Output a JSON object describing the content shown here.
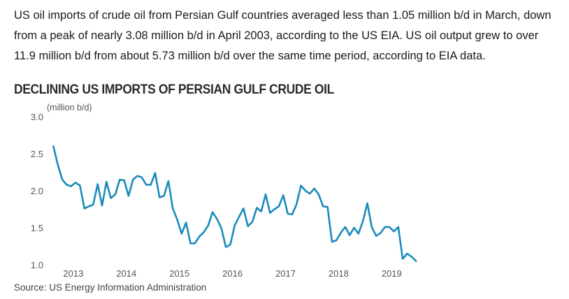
{
  "intro_text": "US oil imports of crude oil from Persian Gulf countries averaged less than 1.05 million b/d in March, down from a peak of nearly 3.08 million b/d in April 2003, according to the US EIA. US oil output grew to over 11.9 million b/d from about 5.73 million b/d over the same time period, according to EIA data.",
  "source": "Source: US Energy Information Administration",
  "colors": {
    "line": "#1a8bbb",
    "text": "#1a1a1a",
    "tick": "#555555"
  },
  "chart_data": {
    "type": "line",
    "title": "DECLINING US IMPORTS OF PERSIAN GULF CRUDE OIL",
    "ylabel": "(million b/d)",
    "xlabel": "",
    "ylim": [
      1.0,
      3.0
    ],
    "yticks": [
      "1.0",
      "1.5",
      "2.0",
      "2.5",
      "3.0"
    ],
    "xticks": [
      "2013",
      "2014",
      "2015",
      "2016",
      "2017",
      "2018",
      "2019"
    ],
    "xlim": [
      2012.58,
      2019.22
    ],
    "grid": false,
    "series": [
      {
        "start": 2012.625,
        "step": 0.08333,
        "values": [
          2.6,
          2.35,
          2.15,
          2.08,
          2.06,
          2.11,
          2.07,
          1.76,
          1.79,
          1.81,
          2.09,
          1.8,
          2.12,
          1.9,
          1.95,
          2.15,
          2.14,
          1.93,
          2.15,
          2.2,
          2.18,
          2.08,
          2.08,
          2.24,
          1.91,
          1.93,
          2.13,
          1.76,
          1.61,
          1.42,
          1.57,
          1.29,
          1.29,
          1.38,
          1.44,
          1.53,
          1.71,
          1.62,
          1.49,
          1.24,
          1.27,
          1.53,
          1.65,
          1.76,
          1.52,
          1.58,
          1.77,
          1.72,
          1.95,
          1.7,
          1.75,
          1.79,
          1.94,
          1.69,
          1.68,
          1.82,
          2.07,
          2.0,
          1.96,
          2.03,
          1.95,
          1.79,
          1.78,
          1.31,
          1.33,
          1.43,
          1.51,
          1.4,
          1.5,
          1.42,
          1.59,
          1.83,
          1.51,
          1.39,
          1.43,
          1.51,
          1.51,
          1.45,
          1.51,
          1.08,
          1.15,
          1.11,
          1.05
        ]
      }
    ]
  }
}
